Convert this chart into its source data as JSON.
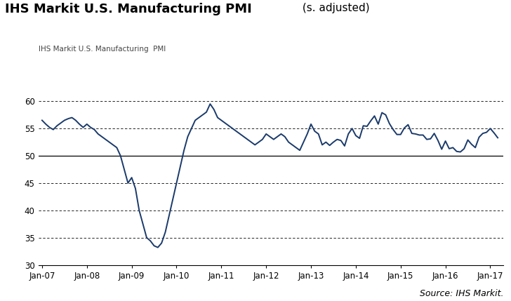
{
  "title_bold": "IHS Markit U.S. Manufacturing PMI",
  "title_normal": " (s. adjusted)",
  "ylabel": "IHS Markit U.S. Manufacturing  PMI",
  "source": "Source: IHS Markit.",
  "line_color": "#1a3a6b",
  "background_color": "#ffffff",
  "ylim": [
    30,
    62
  ],
  "yticks": [
    30,
    35,
    40,
    45,
    50,
    55,
    60
  ],
  "hline_solid": 50,
  "hlines_dashed": [
    55,
    45,
    40,
    35
  ],
  "hline_60_dashed": 60,
  "xtick_labels": [
    "Jan-07",
    "Jan-08",
    "Jan-09",
    "Jan-10",
    "Jan-11",
    "Jan-12",
    "Jan-13",
    "Jan-14",
    "Jan-15",
    "Jan-16",
    "Jan-17"
  ],
  "xtick_positions": [
    0,
    12,
    24,
    36,
    48,
    60,
    72,
    84,
    96,
    108,
    120
  ],
  "pmi_values": [
    56.5,
    55.8,
    55.2,
    54.8,
    55.5,
    56.0,
    56.5,
    56.8,
    57.0,
    56.5,
    55.8,
    55.2,
    55.8,
    55.2,
    54.8,
    54.0,
    53.5,
    53.0,
    52.5,
    52.0,
    51.5,
    50.0,
    47.5,
    45.0,
    46.0,
    44.0,
    40.0,
    37.5,
    35.0,
    34.4,
    33.5,
    33.2,
    34.0,
    36.0,
    39.0,
    42.0,
    45.0,
    48.0,
    51.0,
    53.5,
    55.0,
    56.5,
    57.0,
    57.5,
    58.0,
    59.5,
    58.5,
    57.0,
    56.5,
    56.0,
    55.5,
    55.0,
    54.5,
    54.0,
    53.5,
    53.0,
    52.5,
    52.0,
    52.5,
    53.0,
    54.0,
    53.5,
    53.0,
    53.5,
    54.0,
    53.5,
    52.5,
    52.0,
    51.5,
    51.0,
    52.5,
    54.0,
    55.8,
    54.5,
    54.0,
    52.0,
    52.5,
    51.9,
    52.5,
    53.0,
    52.8,
    51.8,
    54.0,
    55.0,
    53.7,
    53.2,
    55.5,
    55.4,
    56.4,
    57.3,
    55.8,
    57.9,
    57.5,
    55.9,
    54.8,
    53.9,
    53.9,
    55.1,
    55.7,
    54.1,
    54.0,
    53.8,
    53.8,
    53.0,
    53.1,
    54.1,
    52.8,
    51.2,
    52.7,
    51.3,
    51.5,
    50.8,
    50.7,
    51.3,
    52.9,
    52.1,
    51.5,
    53.4,
    54.1,
    54.3,
    55.0,
    54.2,
    53.3
  ]
}
